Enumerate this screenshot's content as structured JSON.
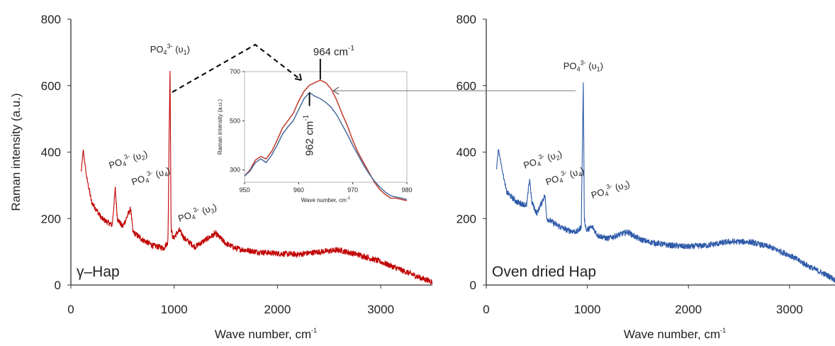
{
  "chart_data": [
    {
      "type": "line",
      "panel": "left",
      "color": "#c00000",
      "panel_label": "γ–Hap",
      "xlabel": "Wave number, cm",
      "xlabel_sup": "-1",
      "ylabel": "Raman intensity (a.u.)",
      "xlim": [
        0,
        3500
      ],
      "ylim": [
        0,
        800
      ],
      "x_ticks": [
        "0",
        "1000",
        "2000",
        "3000"
      ],
      "y_ticks": [
        "0",
        "200",
        "400",
        "600",
        "800"
      ],
      "series": [
        {
          "x": [
            100,
            120,
            150,
            200,
            300,
            400,
            430,
            450,
            500,
            580,
            600,
            700,
            800,
            900,
            940,
            950,
            960,
            970,
            990,
            1050,
            1100,
            1200,
            1300,
            1400,
            1500,
            1600,
            1800,
            2000,
            2200,
            2400,
            2600,
            2800,
            3000,
            3200,
            3400,
            3500
          ],
          "y": [
            340,
            405,
            330,
            250,
            200,
            180,
            290,
            200,
            175,
            230,
            160,
            135,
            118,
            112,
            130,
            420,
            655,
            170,
            140,
            165,
            140,
            115,
            135,
            155,
            125,
            110,
            100,
            95,
            92,
            100,
            105,
            90,
            70,
            45,
            20,
            10
          ]
        }
      ],
      "annotations": [
        {
          "base": "PO",
          "sub": "4",
          "sup": "3-",
          "mode": "υ",
          "mode_sub": "1",
          "x": 960,
          "y": 700
        },
        {
          "base": "PO",
          "sub": "4",
          "sup": "3-",
          "mode": "υ",
          "mode_sub": "2",
          "x": 380,
          "y": 350
        },
        {
          "base": "PO",
          "sub": "4",
          "sup": "3-",
          "mode": "υ",
          "mode_sub": "4",
          "x": 600,
          "y": 300
        },
        {
          "base": "PO",
          "sub": "4",
          "sup": "3-",
          "mode": "υ",
          "mode_sub": "3",
          "x": 1050,
          "y": 190
        }
      ]
    },
    {
      "type": "line",
      "panel": "inset",
      "xlabel": "Wave number, cm",
      "xlabel_sup": "-1",
      "ylabel": "Raman intensity (a.u.)",
      "xlim": [
        950,
        980
      ],
      "ylim": [
        250,
        700
      ],
      "x_ticks": [
        "950",
        "960",
        "970",
        "980"
      ],
      "y_ticks": [
        "300",
        "500",
        "700"
      ],
      "series": [
        {
          "color": "#c0392b",
          "x": [
            950,
            951,
            952,
            953,
            954,
            955,
            956,
            957,
            958,
            959,
            960,
            961,
            962,
            963,
            964,
            965,
            966,
            967,
            968,
            969,
            970,
            971,
            972,
            973,
            974,
            975,
            976,
            977,
            978,
            979,
            980
          ],
          "y": [
            275,
            300,
            340,
            355,
            345,
            375,
            420,
            470,
            500,
            530,
            580,
            620,
            645,
            655,
            665,
            655,
            630,
            585,
            530,
            480,
            420,
            370,
            330,
            290,
            250,
            220,
            200,
            185,
            185,
            180,
            175
          ]
        },
        {
          "color": "#4a6c9b",
          "x": [
            950,
            951,
            952,
            953,
            954,
            955,
            956,
            957,
            958,
            959,
            960,
            961,
            962,
            963,
            964,
            965,
            966,
            967,
            968,
            969,
            970,
            971,
            972,
            973,
            974,
            975,
            976,
            977,
            978,
            979,
            980
          ],
          "y": [
            275,
            295,
            330,
            345,
            330,
            360,
            400,
            445,
            475,
            500,
            545,
            590,
            615,
            600,
            590,
            575,
            555,
            525,
            485,
            445,
            400,
            360,
            320,
            285,
            255,
            230,
            210,
            195,
            190,
            185,
            180
          ]
        }
      ],
      "annotations": [
        {
          "text": "964 cm",
          "sup": "-1",
          "x": 964
        },
        {
          "text": "962 cm",
          "sup": "-1",
          "x": 962
        }
      ]
    },
    {
      "type": "line",
      "panel": "right",
      "color": "#2e5aa8",
      "panel_label": "Oven dried Hap",
      "xlabel": "Wave number, cm",
      "xlabel_sup": "-1",
      "ylabel": "",
      "xlim": [
        0,
        3450
      ],
      "ylim": [
        0,
        800
      ],
      "x_ticks": [
        "0",
        "1000",
        "2000",
        "3000"
      ],
      "y_ticks": [
        "0",
        "200",
        "400",
        "600",
        "800"
      ],
      "series": [
        {
          "x": [
            100,
            120,
            150,
            200,
            300,
            400,
            430,
            450,
            500,
            580,
            600,
            700,
            800,
            900,
            940,
            950,
            960,
            970,
            990,
            1050,
            1100,
            1200,
            1300,
            1400,
            1500,
            1600,
            1800,
            2000,
            2200,
            2400,
            2600,
            2800,
            3000,
            3200,
            3400,
            3450
          ],
          "y": [
            345,
            410,
            360,
            280,
            250,
            240,
            320,
            250,
            215,
            270,
            200,
            180,
            165,
            160,
            175,
            400,
            615,
            200,
            165,
            175,
            150,
            140,
            150,
            160,
            140,
            130,
            120,
            115,
            120,
            130,
            130,
            115,
            90,
            55,
            25,
            15
          ]
        }
      ],
      "annotations": [
        {
          "base": "PO",
          "sub": "4",
          "sup": "3-",
          "mode": "υ",
          "mode_sub": "1",
          "x": 960,
          "y": 650
        },
        {
          "base": "PO",
          "sub": "4",
          "sup": "3-",
          "mode": "υ",
          "mode_sub": "2",
          "x": 380,
          "y": 350
        },
        {
          "base": "PO",
          "sub": "4",
          "sup": "3-",
          "mode": "υ",
          "mode_sub": "4",
          "x": 600,
          "y": 300
        },
        {
          "base": "PO",
          "sub": "4",
          "sup": "3-",
          "mode": "υ",
          "mode_sub": "3",
          "x": 1050,
          "y": 260
        }
      ]
    }
  ]
}
